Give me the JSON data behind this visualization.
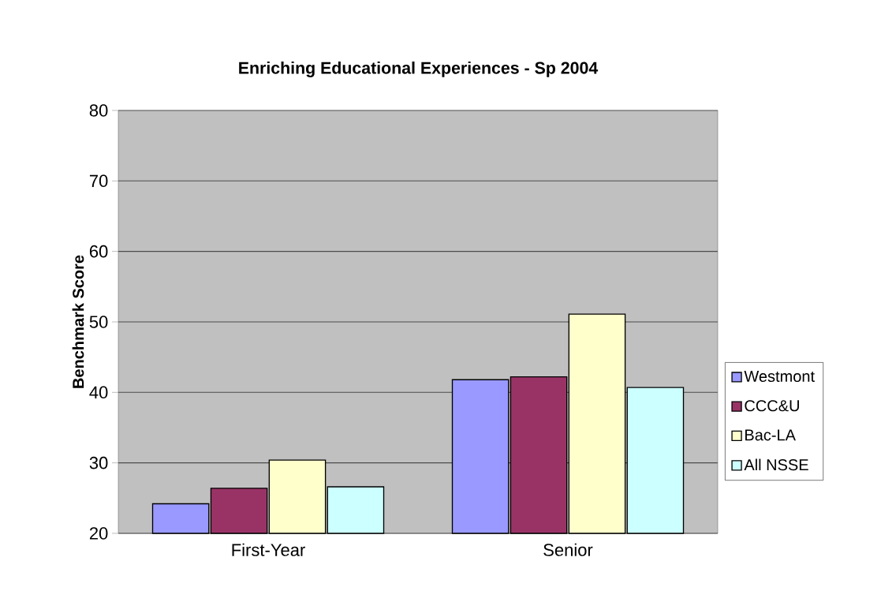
{
  "chart_data": {
    "type": "bar",
    "title": "Enriching Educational Experiences - Sp 2004",
    "ylabel": "Benchmark Score",
    "categories": [
      "First-Year",
      "Senior"
    ],
    "series": [
      {
        "name": "Westmont",
        "color": "#9999ff",
        "values": [
          24.2,
          41.8
        ]
      },
      {
        "name": "CCC&U",
        "color": "#993366",
        "values": [
          26.4,
          42.2
        ]
      },
      {
        "name": "Bac-LA",
        "color": "#ffffcc",
        "values": [
          30.4,
          51.1
        ]
      },
      {
        "name": "All NSSE",
        "color": "#ccffff",
        "values": [
          26.6,
          40.7
        ]
      }
    ],
    "ylim": [
      20,
      80
    ],
    "yticks": [
      20,
      30,
      40,
      50,
      60,
      70,
      80
    ],
    "grid": "y",
    "legend": "right"
  }
}
